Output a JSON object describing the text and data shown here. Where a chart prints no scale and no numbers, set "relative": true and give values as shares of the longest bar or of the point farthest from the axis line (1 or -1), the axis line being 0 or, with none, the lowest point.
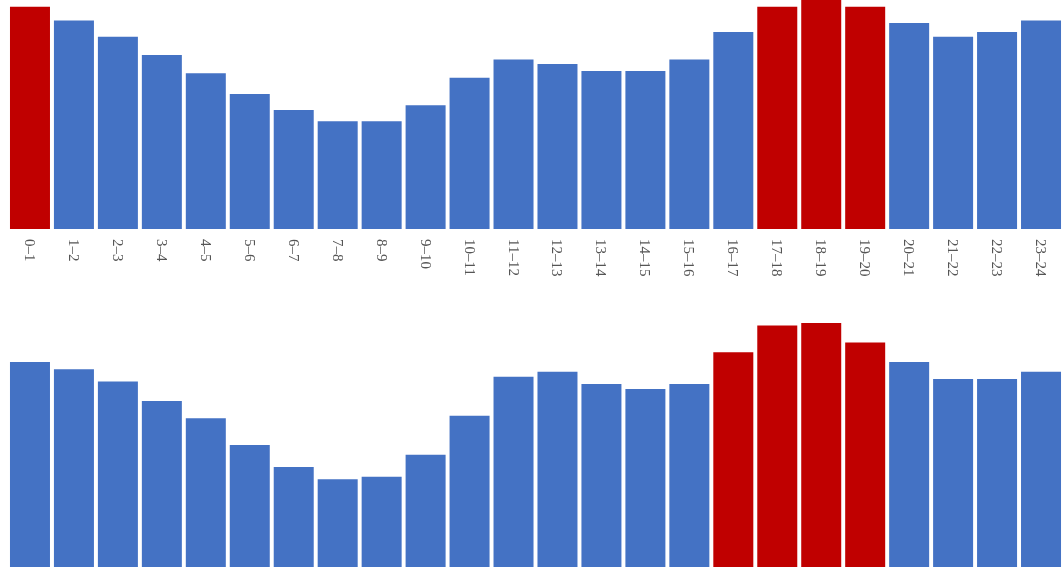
{
  "chart_data": [
    {
      "type": "bar",
      "relative": true,
      "categories": [
        "0–1",
        "1–2",
        "2–3",
        "3–4",
        "4–5",
        "5–6",
        "6–7",
        "7–8",
        "8–9",
        "9–10",
        "10–11",
        "11–12",
        "12–13",
        "13–14",
        "14–15",
        "15–16",
        "16–17",
        "17–18",
        "18–19",
        "19–20",
        "20–21",
        "21–22",
        "22–23",
        "23–24"
      ],
      "values": [
        0.97,
        0.91,
        0.84,
        0.76,
        0.68,
        0.59,
        0.52,
        0.47,
        0.47,
        0.54,
        0.66,
        0.74,
        0.72,
        0.69,
        0.69,
        0.74,
        0.86,
        0.97,
        1,
        0.97,
        0.9,
        0.84,
        0.86,
        0.91
      ],
      "colors": [
        "#c00000",
        "#4472c4",
        "#4472c4",
        "#4472c4",
        "#4472c4",
        "#4472c4",
        "#4472c4",
        "#4472c4",
        "#4472c4",
        "#4472c4",
        "#4472c4",
        "#4472c4",
        "#4472c4",
        "#4472c4",
        "#4472c4",
        "#4472c4",
        "#4472c4",
        "#c00000",
        "#c00000",
        "#c00000",
        "#4472c4",
        "#4472c4",
        "#4472c4",
        "#4472c4"
      ]
    },
    {
      "type": "bar",
      "relative": true,
      "tick_labels": false,
      "categories": [
        null,
        null,
        null,
        null,
        null,
        null,
        null,
        null,
        null,
        null,
        null,
        null,
        null,
        null,
        null,
        null,
        null,
        null,
        null,
        null,
        null,
        null,
        null,
        null
      ],
      "values": [
        0.84,
        0.81,
        0.76,
        0.68,
        0.61,
        0.5,
        0.41,
        0.36,
        0.37,
        0.46,
        0.62,
        0.78,
        0.8,
        0.75,
        0.73,
        0.75,
        0.88,
        0.99,
        1,
        0.92,
        0.84,
        0.77,
        0.77,
        0.8
      ],
      "colors": [
        "#4472c4",
        "#4472c4",
        "#4472c4",
        "#4472c4",
        "#4472c4",
        "#4472c4",
        "#4472c4",
        "#4472c4",
        "#4472c4",
        "#4472c4",
        "#4472c4",
        "#4472c4",
        "#4472c4",
        "#4472c4",
        "#4472c4",
        "#4472c4",
        "#c00000",
        "#c00000",
        "#c00000",
        "#c00000",
        "#4472c4",
        "#4472c4",
        "#4472c4",
        "#4472c4"
      ]
    }
  ]
}
